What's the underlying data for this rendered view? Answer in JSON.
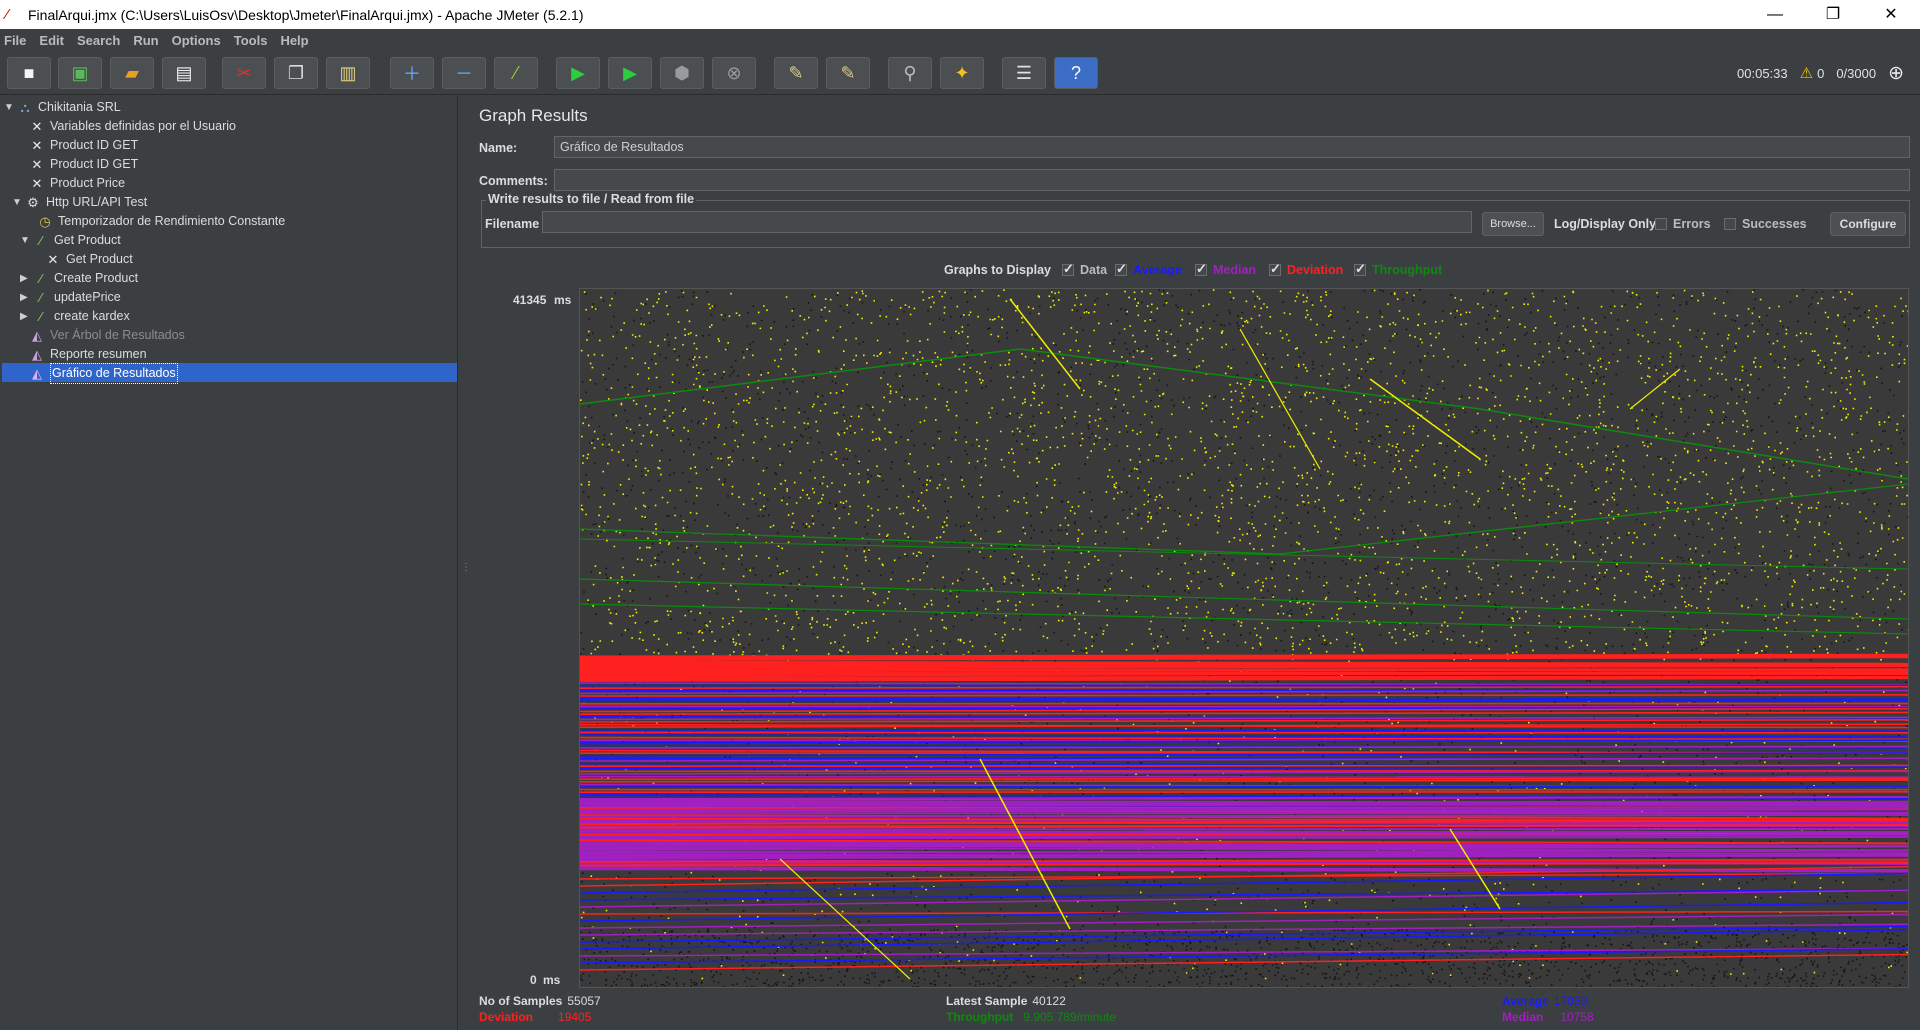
{
  "window": {
    "title": "FinalArqui.jmx (C:\\Users\\LuisOsv\\Desktop\\Jmeter\\FinalArqui.jmx) - Apache JMeter (5.2.1)"
  },
  "menu": [
    "File",
    "Edit",
    "Search",
    "Run",
    "Options",
    "Tools",
    "Help"
  ],
  "status": {
    "elapsed": "00:05:33",
    "warnings": "0",
    "threads": "0/3000"
  },
  "tree": [
    {
      "label": "Chikitania SRL",
      "icon": "testplan-icon",
      "expanded": true
    },
    {
      "label": "Variables definidas por el Usuario",
      "icon": "config-icon"
    },
    {
      "label": "Product ID GET",
      "icon": "config-icon"
    },
    {
      "label": "Product ID GET",
      "icon": "config-icon"
    },
    {
      "label": "Product Price",
      "icon": "config-icon"
    },
    {
      "label": "Http URL/API Test",
      "icon": "threadgroup-icon",
      "expanded": true
    },
    {
      "label": "Temporizador de Rendimiento Constante",
      "icon": "timer-icon"
    },
    {
      "label": "Get Product",
      "icon": "sampler-icon",
      "expanded": true
    },
    {
      "label": "Get Product",
      "icon": "config-icon"
    },
    {
      "label": "Create Product",
      "icon": "sampler-icon",
      "expanded": false
    },
    {
      "label": "updatePrice",
      "icon": "sampler-icon",
      "expanded": false
    },
    {
      "label": "create  kardex",
      "icon": "sampler-icon",
      "expanded": false
    },
    {
      "label": "Ver Árbol de Resultados",
      "icon": "listener-icon",
      "disabled": true
    },
    {
      "label": "Reporte resumen",
      "icon": "listener-icon"
    },
    {
      "label": "Gráfico de Resultados",
      "icon": "listener-icon",
      "selected": true
    }
  ],
  "panel": {
    "title": "Graph Results",
    "name_label": "Name:",
    "name_value": "Gráfico de Resultados",
    "comments_label": "Comments:",
    "comments_value": "",
    "file_legend": "Write results to file / Read from file",
    "filename_label": "Filename",
    "filename_value": "",
    "browse": "Browse...",
    "log_display": "Log/Display Only:",
    "errors": "Errors",
    "successes": "Successes",
    "configure": "Configure"
  },
  "graphs": {
    "label": "Graphs to Display",
    "items": [
      {
        "name": "Data",
        "color": "#dcdcdc",
        "checked": true
      },
      {
        "name": "Average",
        "color": "#1a1aff",
        "checked": true
      },
      {
        "name": "Median",
        "color": "#a020c0",
        "checked": true
      },
      {
        "name": "Deviation",
        "color": "#ff2020",
        "checked": true
      },
      {
        "name": "Throughput",
        "color": "#0d8a0d",
        "checked": true
      }
    ]
  },
  "chart_data": {
    "type": "scatter",
    "title": "Graph Results",
    "ymax_label": "41345",
    "ymin_label": "0",
    "unit": "ms",
    "ylim": [
      0,
      41345
    ],
    "series": [
      {
        "name": "Data",
        "color": "#f0f000"
      },
      {
        "name": "Average",
        "color": "#1a1aff"
      },
      {
        "name": "Median",
        "color": "#a020c0"
      },
      {
        "name": "Deviation",
        "color": "#ff2020"
      },
      {
        "name": "Throughput",
        "color": "#0d8a0d"
      }
    ]
  },
  "stats": {
    "samples_label": "No of Samples",
    "samples": "55057",
    "latest_label": "Latest Sample",
    "latest": "40122",
    "average_label": "Average",
    "average": "17050",
    "deviation_label": "Deviation",
    "deviation": "19405",
    "throughput_label": "Throughput",
    "throughput": "9.905.789/minute",
    "median_label": "Median",
    "median": "10758"
  },
  "colors": {
    "average": "#1a1aff",
    "median": "#a020c0",
    "deviation": "#ff2020",
    "throughput": "#0d8a0d"
  }
}
